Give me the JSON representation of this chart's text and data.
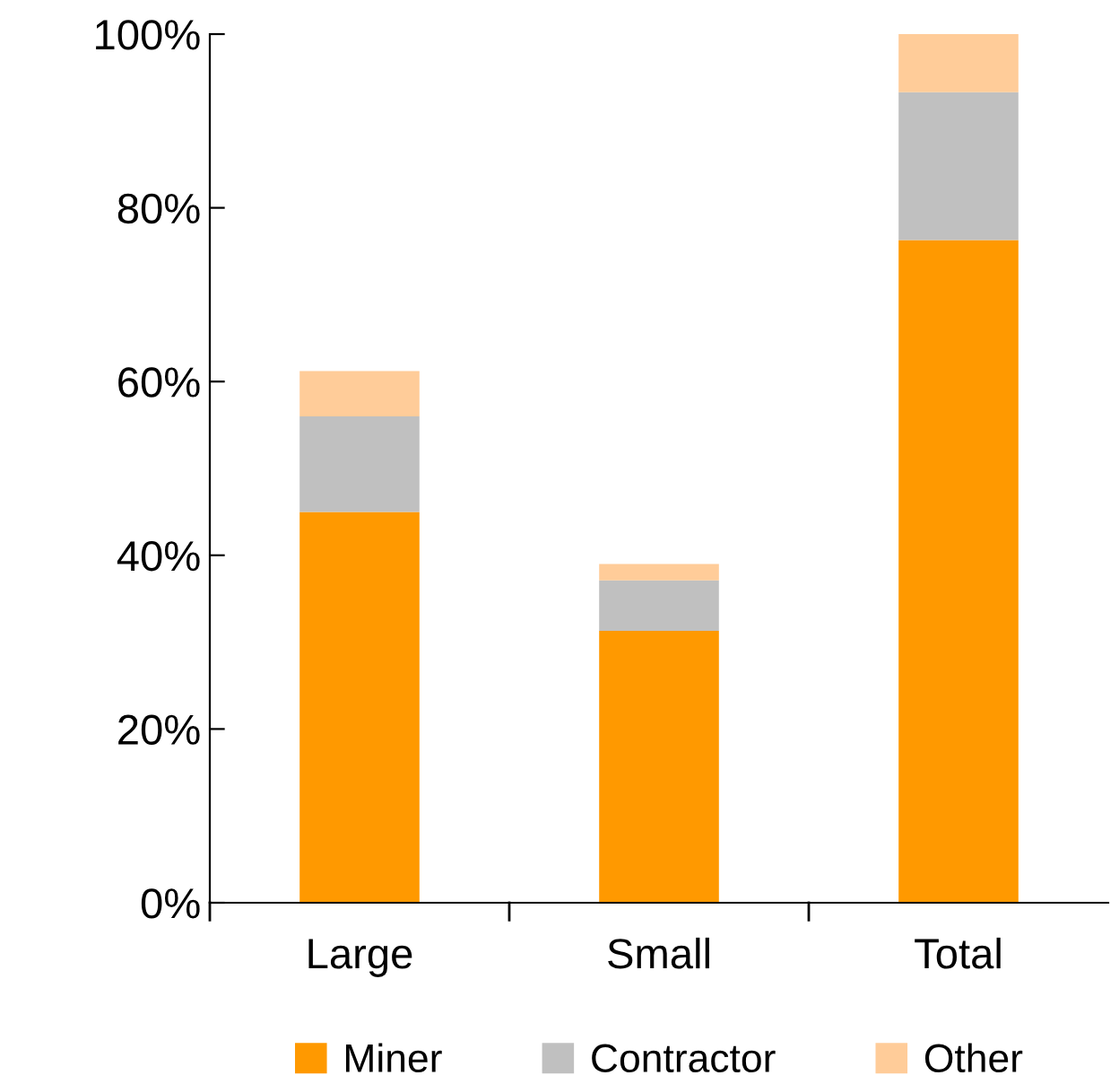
{
  "chart_data": {
    "type": "bar",
    "stacked": true,
    "categories": [
      "Large",
      "Small",
      "Total"
    ],
    "series": [
      {
        "name": "Miner",
        "color": "#ff9900",
        "values": [
          45,
          31.3,
          76.3
        ]
      },
      {
        "name": "Contractor",
        "color": "#c0c0c0",
        "values": [
          11,
          5.8,
          17
        ]
      },
      {
        "name": "Other",
        "color": "#ffcc99",
        "values": [
          5.2,
          1.9,
          6.7
        ]
      }
    ],
    "ylim": [
      0,
      100
    ],
    "yticks": [
      {
        "value": 0,
        "label": "0%"
      },
      {
        "value": 20,
        "label": "20%"
      },
      {
        "value": 40,
        "label": "40%"
      },
      {
        "value": 60,
        "label": "60%"
      },
      {
        "value": 80,
        "label": "80%"
      },
      {
        "value": 100,
        "label": "100%"
      }
    ],
    "grid": false,
    "legend": "bottom"
  }
}
